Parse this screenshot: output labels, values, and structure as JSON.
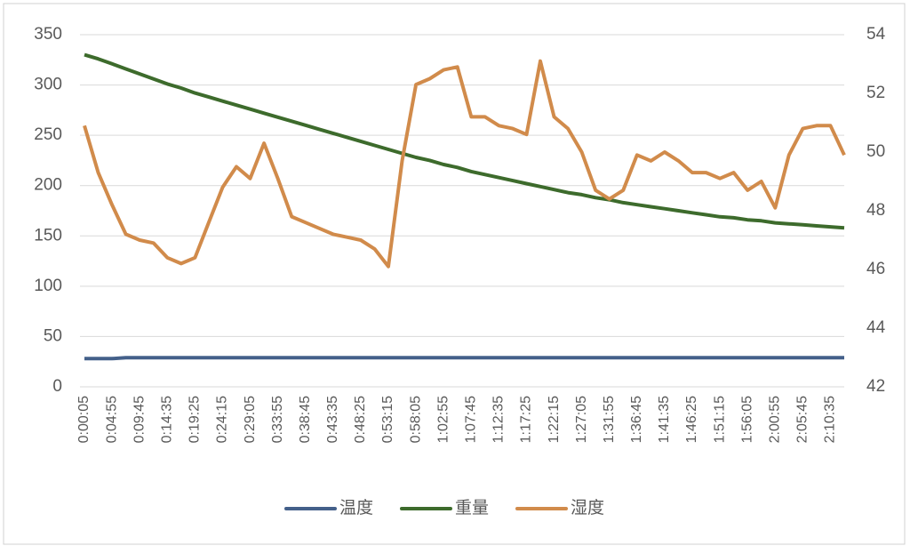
{
  "chart_data": {
    "type": "line",
    "categories": [
      "0:00:05",
      null,
      "0:04:55",
      null,
      "0:09:45",
      null,
      "0:14:35",
      null,
      "0:19:25",
      null,
      "0:24:15",
      null,
      "0:29:05",
      null,
      "0:33:55",
      null,
      "0:38:45",
      null,
      "0:43:35",
      null,
      "0:48:25",
      null,
      "0:53:15",
      null,
      "0:58:05",
      null,
      "1:02:55",
      null,
      "1:07:45",
      null,
      "1:12:35",
      null,
      "1:17:25",
      null,
      "1:22:15",
      null,
      "1:27:05",
      null,
      "1:31:55",
      null,
      "1:36:45",
      null,
      "1:41:35",
      null,
      "1:46:25",
      null,
      "1:51:15",
      null,
      "1:56:05",
      null,
      "2:00:55",
      null,
      "2:05:45",
      null,
      "2:10:35",
      null
    ],
    "series": [
      {
        "name": "温度",
        "color": "#44608a",
        "values": [
          28,
          28,
          28,
          29,
          29,
          29,
          29,
          29,
          29,
          29,
          29,
          29,
          29,
          29,
          29,
          29,
          29,
          29,
          29,
          29,
          29,
          29,
          29,
          29,
          29,
          29,
          29,
          29,
          29,
          29,
          29,
          29,
          29,
          29,
          29,
          29,
          29,
          29,
          29,
          29,
          29,
          29,
          29,
          29,
          29,
          29,
          29,
          29,
          29,
          29,
          29,
          29,
          29,
          29,
          29,
          29
        ]
      },
      {
        "name": "重量",
        "color": "#3d6b2c",
        "values": [
          330,
          326,
          321,
          316,
          311,
          306,
          301,
          297,
          292,
          288,
          284,
          280,
          276,
          272,
          268,
          264,
          260,
          256,
          252,
          248,
          244,
          240,
          236,
          232,
          228,
          225,
          221,
          218,
          214,
          211,
          208,
          205,
          202,
          199,
          196,
          193,
          191,
          188,
          186,
          183,
          181,
          179,
          177,
          175,
          173,
          171,
          169,
          168,
          166,
          165,
          163,
          162,
          161,
          160,
          159,
          158
        ]
      },
      {
        "name": "湿度",
        "color": "#d18b4b",
        "axis": "y2",
        "values": [
          50.9,
          49.3,
          48.2,
          47.2,
          47.0,
          46.9,
          46.4,
          46.2,
          46.4,
          47.6,
          48.8,
          49.5,
          49.1,
          50.3,
          49.1,
          47.8,
          47.6,
          47.4,
          47.2,
          47.1,
          47.0,
          46.7,
          46.1,
          49.7,
          52.3,
          52.5,
          52.8,
          52.9,
          51.2,
          51.2,
          50.9,
          50.8,
          50.6,
          53.1,
          51.2,
          50.8,
          50.0,
          48.7,
          48.4,
          48.7,
          49.9,
          49.7,
          50.0,
          49.7,
          49.3,
          49.3,
          49.1,
          49.3,
          48.7,
          49.0,
          48.1,
          49.9,
          50.8,
          50.9,
          50.9,
          49.9
        ]
      }
    ],
    "ylim": [
      0,
      350
    ],
    "yticks": [
      0,
      50,
      100,
      150,
      200,
      250,
      300,
      350
    ],
    "y2lim": [
      42,
      54
    ],
    "y2ticks": [
      42,
      44,
      46,
      48,
      50,
      52,
      54
    ],
    "grid": true,
    "legend": "bottom"
  }
}
